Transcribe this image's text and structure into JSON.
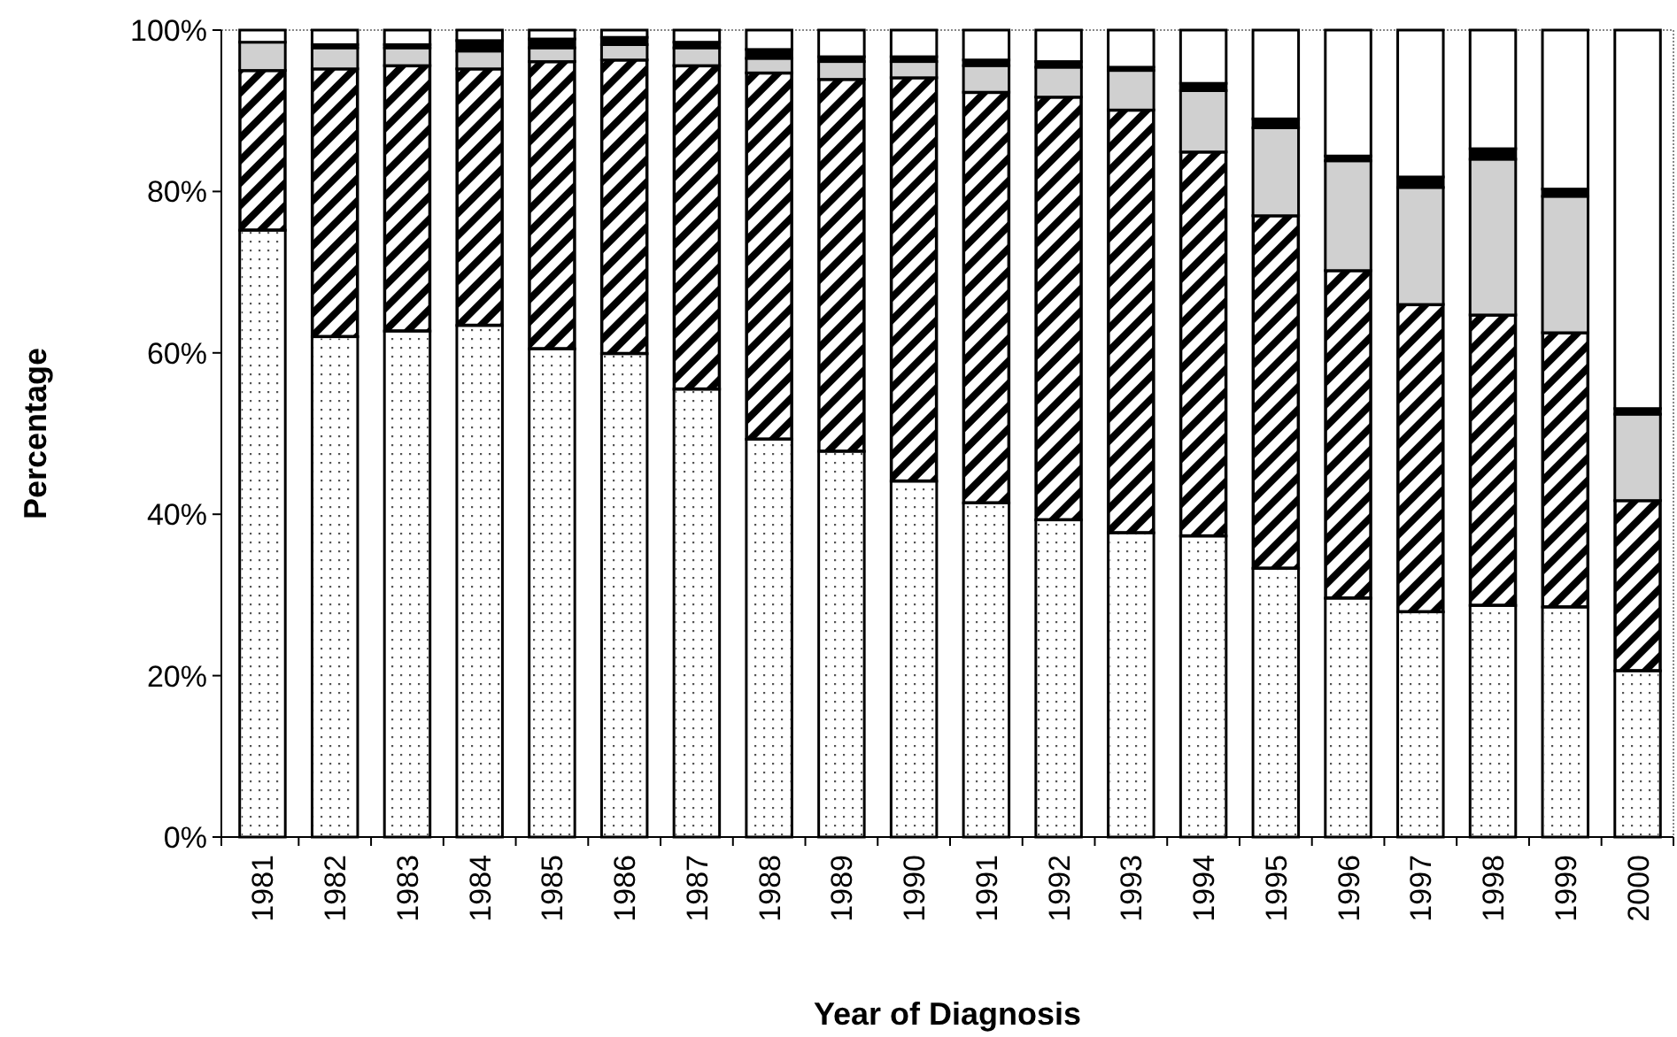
{
  "chart_data": {
    "type": "bar",
    "stacked": true,
    "xlabel": "Year of Diagnosis",
    "ylabel": "Percentage",
    "categories": [
      "1981",
      "1982",
      "1983",
      "1984",
      "1985",
      "1986",
      "1987",
      "1988",
      "1989",
      "1990",
      "1991",
      "1992",
      "1993",
      "1994",
      "1995",
      "1996",
      "1997",
      "1998",
      "1999",
      "2000"
    ],
    "series": [
      {
        "color": "#ffffff",
        "values": [
          75.2,
          62,
          62.7,
          63.4,
          60.5,
          59.9,
          55.5,
          49.3,
          47.8,
          44.1,
          41.4,
          39.3,
          37.7,
          37.3,
          33.3,
          29.6,
          27.9,
          28.7,
          28.5,
          20.6
        ]
      },
      {
        "color": "#000000",
        "values": [
          19.8,
          33.2,
          32.9,
          31.8,
          35.6,
          36.4,
          40.1,
          45.4,
          46.1,
          50,
          50.9,
          52.4,
          52.4,
          47.6,
          43.7,
          40.6,
          38.1,
          36,
          34,
          21.1
        ]
      },
      {
        "color": "#d0d0d0",
        "values": [
          3.5,
          2.6,
          2.2,
          2.2,
          1.7,
          1.9,
          2.2,
          1.8,
          2.2,
          2,
          3.3,
          3.7,
          4.9,
          7.6,
          10.9,
          13.6,
          14.5,
          19.3,
          16.9,
          10.7
        ]
      },
      {
        "color": "#000000",
        "values": [
          0,
          0.4,
          0.4,
          1.3,
          1.1,
          0.9,
          0.7,
          1.1,
          0.6,
          0.6,
          0.7,
          0.7,
          0.4,
          0.9,
          1.1,
          0.6,
          1.3,
          1.3,
          0.9,
          0.7
        ]
      },
      {
        "color": "#ffffff",
        "values": [
          1.5,
          1.8,
          1.8,
          1.3,
          1.1,
          0.9,
          1.5,
          2.4,
          3.3,
          3.3,
          3.7,
          3.9,
          4.6,
          6.6,
          11,
          15.6,
          18.2,
          14.7,
          19.7,
          46.9
        ]
      }
    ],
    "ylim": [
      0,
      100
    ],
    "yticks": [
      {
        "value": 0,
        "label": "0%"
      },
      {
        "value": 20,
        "label": "20%"
      },
      {
        "value": 40,
        "label": "40%"
      },
      {
        "value": 60,
        "label": "60%"
      },
      {
        "value": 80,
        "label": "80%"
      },
      {
        "value": 100,
        "label": "100%"
      }
    ],
    "grid": false
  }
}
